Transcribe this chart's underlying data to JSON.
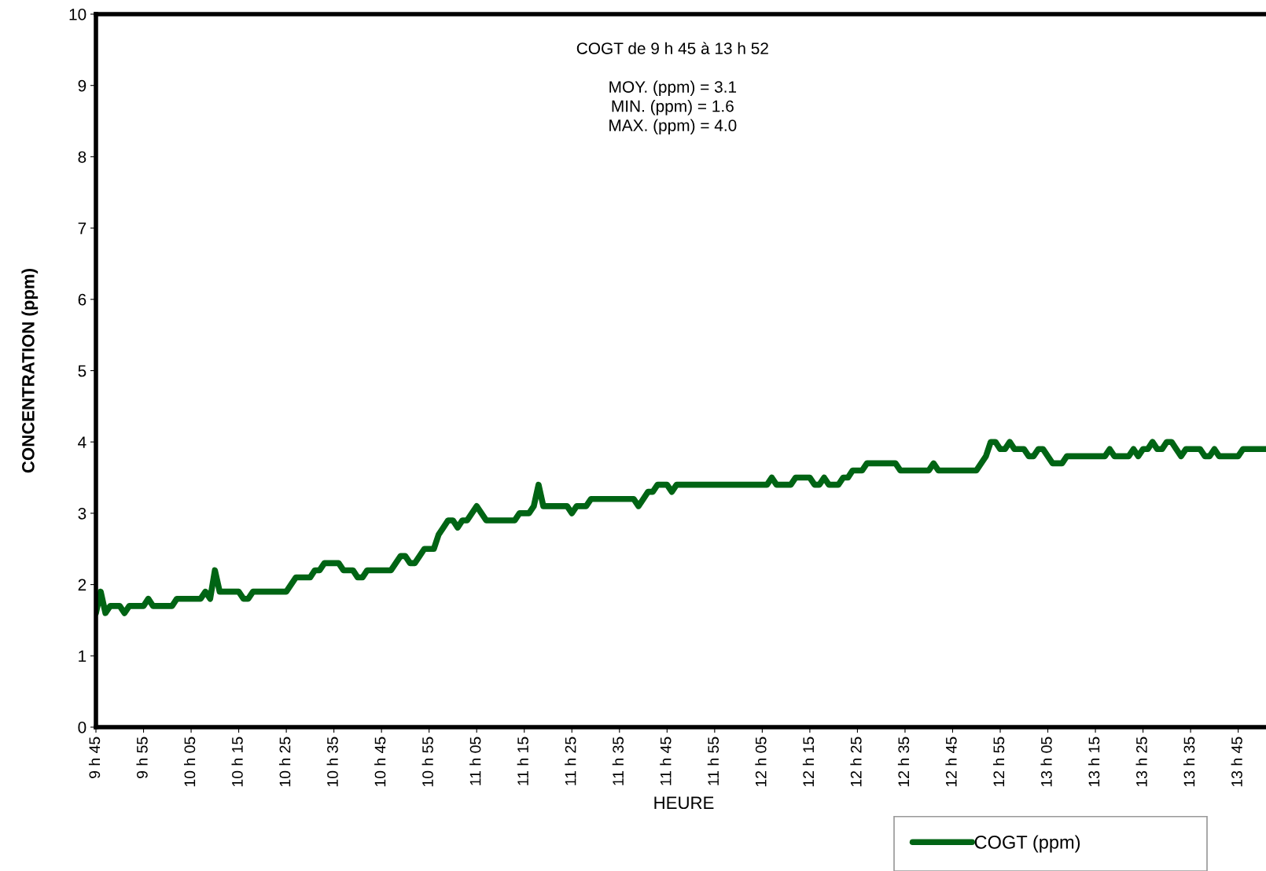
{
  "chart_data": {
    "type": "line",
    "title": "COGT de 9 h 45 à 13 h 52",
    "annotations": [
      "MOY. (ppm) = 3.1",
      "MIN. (ppm) = 1.6",
      "MAX. (ppm) = 4.0"
    ],
    "xlabel": "HEURE",
    "ylabel": "CONCENTRATION (ppm)",
    "categories": [
      "9 h 45",
      null,
      null,
      null,
      null,
      null,
      null,
      null,
      null,
      null,
      "9 h 55",
      null,
      null,
      null,
      null,
      null,
      null,
      null,
      null,
      null,
      "10 h 05",
      null,
      null,
      null,
      null,
      null,
      null,
      null,
      null,
      null,
      "10 h 15",
      null,
      null,
      null,
      null,
      null,
      null,
      null,
      null,
      null,
      "10 h 25",
      null,
      null,
      null,
      null,
      null,
      null,
      null,
      null,
      null,
      "10 h 35",
      null,
      null,
      null,
      null,
      null,
      null,
      null,
      null,
      null,
      "10 h 45",
      null,
      null,
      null,
      null,
      null,
      null,
      null,
      null,
      null,
      "10 h 55",
      null,
      null,
      null,
      null,
      null,
      null,
      null,
      null,
      null,
      "11 h 05",
      null,
      null,
      null,
      null,
      null,
      null,
      null,
      null,
      null,
      "11 h 15",
      null,
      null,
      null,
      null,
      null,
      null,
      null,
      null,
      null,
      "11 h 25",
      null,
      null,
      null,
      null,
      null,
      null,
      null,
      null,
      null,
      "11 h 35",
      null,
      null,
      null,
      null,
      null,
      null,
      null,
      null,
      null,
      "11 h 45",
      null,
      null,
      null,
      null,
      null,
      null,
      null,
      null,
      null,
      "11 h 55",
      null,
      null,
      null,
      null,
      null,
      null,
      null,
      null,
      null,
      "12 h 05",
      null,
      null,
      null,
      null,
      null,
      null,
      null,
      null,
      null,
      "12 h 15",
      null,
      null,
      null,
      null,
      null,
      null,
      null,
      null,
      null,
      "12 h 25",
      null,
      null,
      null,
      null,
      null,
      null,
      null,
      null,
      null,
      "12 h 35",
      null,
      null,
      null,
      null,
      null,
      null,
      null,
      null,
      null,
      "12 h 45",
      null,
      null,
      null,
      null,
      null,
      null,
      null,
      null,
      null,
      "12 h 55",
      null,
      null,
      null,
      null,
      null,
      null,
      null,
      null,
      null,
      "13 h 05",
      null,
      null,
      null,
      null,
      null,
      null,
      null,
      null,
      null,
      "13 h 15",
      null,
      null,
      null,
      null,
      null,
      null,
      null,
      null,
      null,
      "13 h 25",
      null,
      null,
      null,
      null,
      null,
      null,
      null,
      null,
      null,
      "13 h 35",
      null,
      null,
      null,
      null,
      null,
      null,
      null,
      null,
      null,
      "13 h 45",
      null,
      null,
      null,
      null,
      null,
      null,
      null
    ],
    "series": [
      {
        "name": "COGT (ppm)",
        "color": "#006414",
        "values": [
          1.6,
          1.9,
          1.6,
          1.7,
          1.7,
          1.7,
          1.6,
          1.7,
          1.7,
          1.7,
          1.7,
          1.8,
          1.7,
          1.7,
          1.7,
          1.7,
          1.7,
          1.8,
          1.8,
          1.8,
          1.8,
          1.8,
          1.8,
          1.9,
          1.8,
          2.2,
          1.9,
          1.9,
          1.9,
          1.9,
          1.9,
          1.8,
          1.8,
          1.9,
          1.9,
          1.9,
          1.9,
          1.9,
          1.9,
          1.9,
          1.9,
          2.0,
          2.1,
          2.1,
          2.1,
          2.1,
          2.2,
          2.2,
          2.3,
          2.3,
          2.3,
          2.3,
          2.2,
          2.2,
          2.2,
          2.1,
          2.1,
          2.2,
          2.2,
          2.2,
          2.2,
          2.2,
          2.2,
          2.3,
          2.4,
          2.4,
          2.3,
          2.3,
          2.4,
          2.5,
          2.5,
          2.5,
          2.7,
          2.8,
          2.9,
          2.9,
          2.8,
          2.9,
          2.9,
          3.0,
          3.1,
          3.0,
          2.9,
          2.9,
          2.9,
          2.9,
          2.9,
          2.9,
          2.9,
          3.0,
          3.0,
          3.0,
          3.1,
          3.4,
          3.1,
          3.1,
          3.1,
          3.1,
          3.1,
          3.1,
          3.0,
          3.1,
          3.1,
          3.1,
          3.2,
          3.2,
          3.2,
          3.2,
          3.2,
          3.2,
          3.2,
          3.2,
          3.2,
          3.2,
          3.1,
          3.2,
          3.3,
          3.3,
          3.4,
          3.4,
          3.4,
          3.3,
          3.4,
          3.4,
          3.4,
          3.4,
          3.4,
          3.4,
          3.4,
          3.4,
          3.4,
          3.4,
          3.4,
          3.4,
          3.4,
          3.4,
          3.4,
          3.4,
          3.4,
          3.4,
          3.4,
          3.4,
          3.5,
          3.4,
          3.4,
          3.4,
          3.4,
          3.5,
          3.5,
          3.5,
          3.5,
          3.4,
          3.4,
          3.5,
          3.4,
          3.4,
          3.4,
          3.5,
          3.5,
          3.6,
          3.6,
          3.6,
          3.7,
          3.7,
          3.7,
          3.7,
          3.7,
          3.7,
          3.7,
          3.6,
          3.6,
          3.6,
          3.6,
          3.6,
          3.6,
          3.6,
          3.7,
          3.6,
          3.6,
          3.6,
          3.6,
          3.6,
          3.6,
          3.6,
          3.6,
          3.6,
          3.7,
          3.8,
          4.0,
          4.0,
          3.9,
          3.9,
          4.0,
          3.9,
          3.9,
          3.9,
          3.8,
          3.8,
          3.9,
          3.9,
          3.8,
          3.7,
          3.7,
          3.7,
          3.8,
          3.8,
          3.8,
          3.8,
          3.8,
          3.8,
          3.8,
          3.8,
          3.8,
          3.9,
          3.8,
          3.8,
          3.8,
          3.8,
          3.9,
          3.8,
          3.9,
          3.9,
          4.0,
          3.9,
          3.9,
          4.0,
          4.0,
          3.9,
          3.8,
          3.9,
          3.9,
          3.9,
          3.9,
          3.8,
          3.8,
          3.9,
          3.8,
          3.8,
          3.8,
          3.8,
          3.8,
          3.9,
          3.9,
          3.9,
          3.9,
          3.9,
          3.9,
          3.9
        ]
      }
    ],
    "ylim": [
      0,
      10
    ],
    "yticks": [
      0,
      1,
      2,
      3,
      4,
      5,
      6,
      7,
      8,
      9,
      10
    ],
    "grid": false,
    "legend": "bottom right",
    "marker": "none",
    "line_style": "solid"
  }
}
